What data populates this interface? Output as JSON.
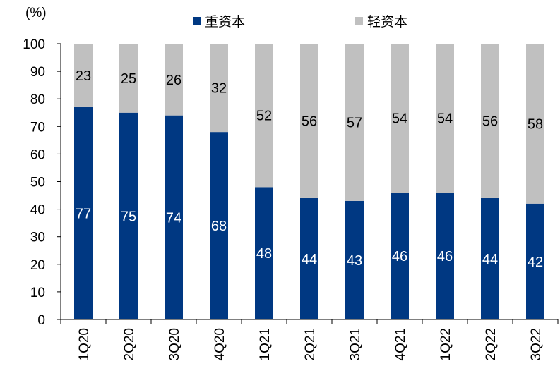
{
  "chart_data": {
    "type": "bar",
    "stacked": true,
    "unit_label": "(%)",
    "categories": [
      "1Q20",
      "2Q20",
      "3Q20",
      "4Q20",
      "1Q21",
      "2Q21",
      "3Q21",
      "4Q21",
      "1Q22",
      "2Q22",
      "3Q22"
    ],
    "series": [
      {
        "name": "重资本",
        "color": "#003882",
        "label_color": "#ffffff",
        "values": [
          77,
          75,
          74,
          68,
          48,
          44,
          43,
          46,
          46,
          44,
          42
        ]
      },
      {
        "name": "轻资本",
        "color": "#c0c0c0",
        "label_color": "#000000",
        "values": [
          23,
          25,
          26,
          32,
          52,
          56,
          57,
          54,
          54,
          56,
          58
        ]
      }
    ],
    "ylim": [
      0,
      100
    ],
    "yticks": [
      0,
      10,
      20,
      30,
      40,
      50,
      60,
      70,
      80,
      90,
      100
    ],
    "legend_position": "top",
    "grid": false
  }
}
